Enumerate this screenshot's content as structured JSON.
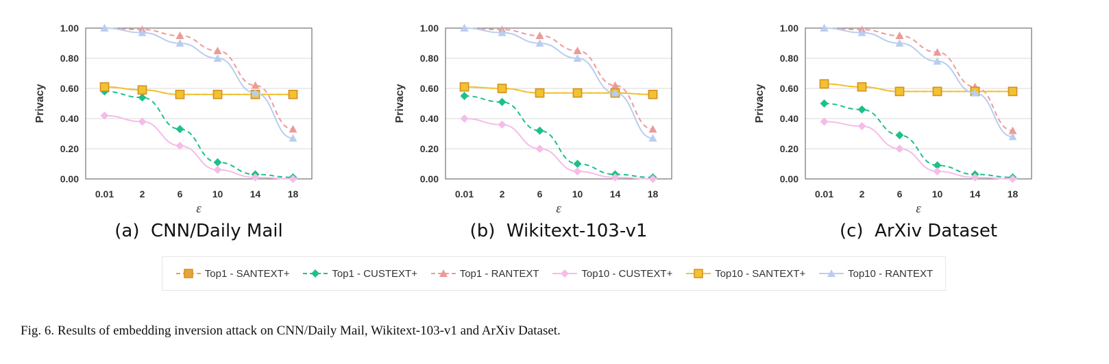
{
  "chart_data": [
    {
      "type": "line",
      "panel_label": "(a)  CNN/Daily Mail",
      "xlabel": "ε",
      "ylabel": "Privacy",
      "categories": [
        "0.01",
        "2",
        "6",
        "10",
        "14",
        "18"
      ],
      "ylim": [
        0,
        1
      ],
      "yticks": [
        "0.00",
        "0.20",
        "0.40",
        "0.60",
        "0.80",
        "1.00"
      ],
      "grid": true,
      "series": [
        {
          "name": "Top1 - SANTEXT+",
          "values": [
            0.61,
            0.59,
            0.56,
            0.56,
            0.56,
            0.56
          ]
        },
        {
          "name": "Top1 - CUSTEXT+",
          "values": [
            0.58,
            0.54,
            0.33,
            0.11,
            0.03,
            0.01
          ]
        },
        {
          "name": "Top1 - RANTEXT",
          "values": [
            1.0,
            0.99,
            0.95,
            0.85,
            0.62,
            0.33
          ]
        },
        {
          "name": "Top10 - CUSTEXT+",
          "values": [
            0.42,
            0.38,
            0.22,
            0.06,
            0.01,
            0.0
          ]
        },
        {
          "name": "Top10 - SANTEXT+",
          "values": [
            0.61,
            0.59,
            0.56,
            0.56,
            0.56,
            0.56
          ]
        },
        {
          "name": "Top10 - RANTEXT",
          "values": [
            1.0,
            0.97,
            0.9,
            0.8,
            0.57,
            0.27
          ]
        }
      ]
    },
    {
      "type": "line",
      "panel_label": "(b)  Wikitext-103-v1",
      "xlabel": "ε",
      "ylabel": "Privacy",
      "categories": [
        "0.01",
        "2",
        "6",
        "10",
        "14",
        "18"
      ],
      "ylim": [
        0,
        1
      ],
      "yticks": [
        "0.00",
        "0.20",
        "0.40",
        "0.60",
        "0.80",
        "1.00"
      ],
      "grid": true,
      "series": [
        {
          "name": "Top1 - SANTEXT+",
          "values": [
            0.61,
            0.6,
            0.57,
            0.57,
            0.57,
            0.56
          ]
        },
        {
          "name": "Top1 - CUSTEXT+",
          "values": [
            0.55,
            0.51,
            0.32,
            0.1,
            0.03,
            0.01
          ]
        },
        {
          "name": "Top1 - RANTEXT",
          "values": [
            1.0,
            0.99,
            0.95,
            0.85,
            0.62,
            0.33
          ]
        },
        {
          "name": "Top10 - CUSTEXT+",
          "values": [
            0.4,
            0.36,
            0.2,
            0.05,
            0.01,
            0.0
          ]
        },
        {
          "name": "Top10 - SANTEXT+",
          "values": [
            0.61,
            0.6,
            0.57,
            0.57,
            0.57,
            0.56
          ]
        },
        {
          "name": "Top10 - RANTEXT",
          "values": [
            1.0,
            0.97,
            0.9,
            0.8,
            0.57,
            0.27
          ]
        }
      ]
    },
    {
      "type": "line",
      "panel_label": "(c)  ArXiv Dataset",
      "xlabel": "ε",
      "ylabel": "Privacy",
      "categories": [
        "0.01",
        "2",
        "6",
        "10",
        "14",
        "18"
      ],
      "ylim": [
        0,
        1
      ],
      "yticks": [
        "0.00",
        "0.20",
        "0.40",
        "0.60",
        "0.80",
        "1.00"
      ],
      "grid": true,
      "series": [
        {
          "name": "Top1 - SANTEXT+",
          "values": [
            0.63,
            0.61,
            0.58,
            0.58,
            0.58,
            0.58
          ]
        },
        {
          "name": "Top1 - CUSTEXT+",
          "values": [
            0.5,
            0.46,
            0.29,
            0.09,
            0.03,
            0.01
          ]
        },
        {
          "name": "Top1 - RANTEXT",
          "values": [
            1.0,
            0.99,
            0.95,
            0.84,
            0.61,
            0.32
          ]
        },
        {
          "name": "Top10 - CUSTEXT+",
          "values": [
            0.38,
            0.35,
            0.2,
            0.05,
            0.01,
            0.0
          ]
        },
        {
          "name": "Top10 - SANTEXT+",
          "values": [
            0.63,
            0.61,
            0.58,
            0.58,
            0.58,
            0.58
          ]
        },
        {
          "name": "Top10 - RANTEXT",
          "values": [
            1.0,
            0.97,
            0.9,
            0.78,
            0.57,
            0.28
          ]
        }
      ]
    }
  ],
  "series_styles": [
    {
      "color": "#e8a33a",
      "dash": true,
      "marker": "square"
    },
    {
      "color": "#1dbf8a",
      "dash": true,
      "marker": "diamond"
    },
    {
      "color": "#ec9a98",
      "dash": true,
      "marker": "triangle"
    },
    {
      "color": "#f5bce8",
      "dash": false,
      "marker": "diamond"
    },
    {
      "color": "#f2c230",
      "dash": false,
      "marker": "square"
    },
    {
      "color": "#b8cdef",
      "dash": false,
      "marker": "triangle"
    }
  ],
  "legend": {
    "placement": "bottom",
    "items": [
      "Top1 - SANTEXT+",
      "Top1 - CUSTEXT+",
      "Top1 - RANTEXT",
      "Top10 - CUSTEXT+",
      "Top10 - SANTEXT+",
      "Top10 - RANTEXT"
    ]
  },
  "caption": "Fig. 6.  Results of embedding inversion attack on CNN/Daily Mail, Wikitext-103-v1 and ArXiv Dataset."
}
